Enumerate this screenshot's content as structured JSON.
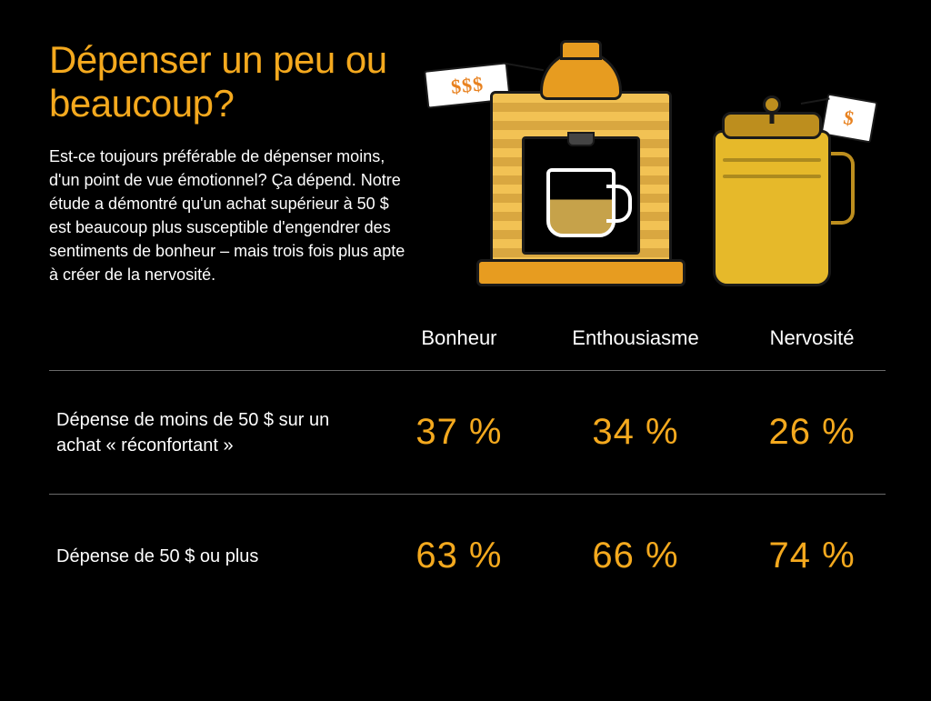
{
  "title": "Dépenser un peu ou beaucoup?",
  "description": "Est-ce toujours préférable de dépenser moins, d'un point de vue émotionnel? Ça dépend. Notre étude a démontré qu'un achat supérieur à 50 $ est beaucoup plus susceptible d'engendrer des sentiments de bonheur – mais trois fois plus apte à créer de la nervosité.",
  "colors": {
    "background": "#000000",
    "accent": "#f4a91e",
    "text": "#ffffff",
    "rule": "#6a6a6a",
    "tag_text": "#e88220",
    "press_body": "#e6b92a",
    "press_dark": "#bd8e1e",
    "machine_orange": "#e79c20",
    "machine_stripe_light": "#f2c254",
    "machine_stripe_dark": "#d9a740"
  },
  "typography": {
    "title_fontsize": 42,
    "body_fontsize": 18,
    "header_fontsize": 22,
    "rowlabel_fontsize": 20,
    "pct_fontsize": 40
  },
  "illustration": {
    "left_tag_text": "$$$",
    "right_tag_text": "$",
    "left_item": "espresso-machine",
    "right_item": "french-press"
  },
  "table": {
    "type": "table",
    "columns": [
      "",
      "Bonheur",
      "Enthousiasme",
      "Nervosité"
    ],
    "rows": [
      {
        "label": "Dépense de moins de 50 $ sur un achat « réconfortant »",
        "values": [
          "37 %",
          "34 %",
          "26 %"
        ]
      },
      {
        "label": "Dépense de 50 $ ou plus",
        "values": [
          "63 %",
          "66 %",
          "74 %"
        ]
      }
    ]
  }
}
